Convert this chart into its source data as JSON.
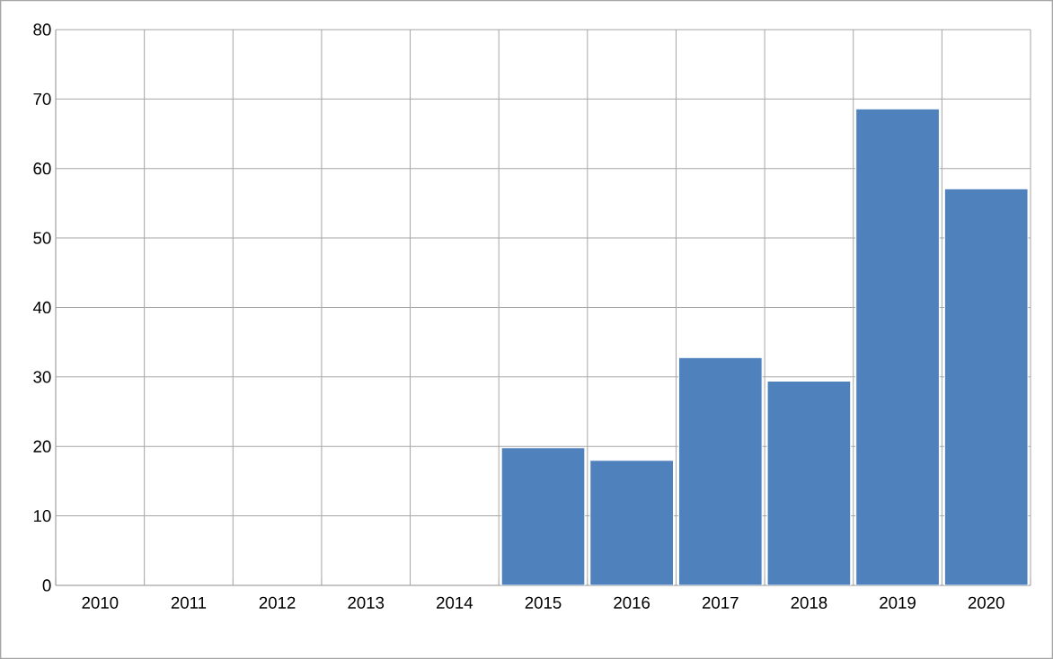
{
  "chart_data": {
    "type": "bar",
    "categories": [
      "2010",
      "2011",
      "2012",
      "2013",
      "2014",
      "2015",
      "2016",
      "2017",
      "2018",
      "2019",
      "2020"
    ],
    "values": [
      null,
      null,
      null,
      null,
      null,
      19.8,
      18.0,
      32.8,
      29.4,
      68.6,
      57.1
    ],
    "color": "#4f81bd",
    "ylim": [
      0,
      80
    ],
    "yticks": [
      0,
      10,
      20,
      30,
      40,
      50,
      60,
      70,
      80
    ],
    "grid": true
  }
}
